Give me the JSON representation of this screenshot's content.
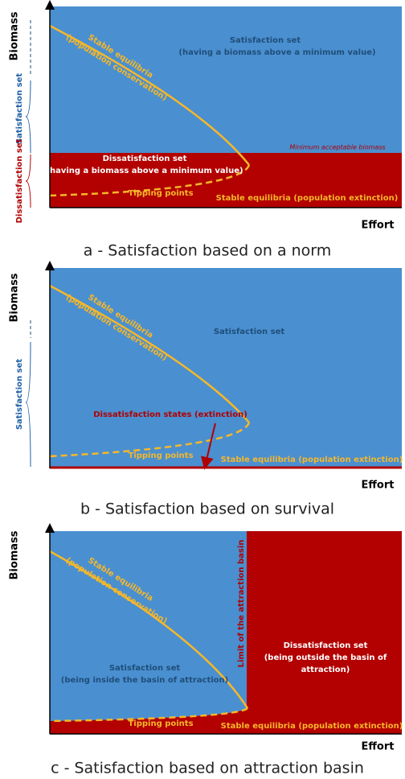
{
  "panels": [
    {
      "caption": "a - Satisfaction based on a norm",
      "y_axis": "Biomass",
      "x_axis": "Effort",
      "side_labels": [
        "Satisfaction set",
        "Dissatisfaction set"
      ],
      "labels": [
        "Stable equilibria",
        "(population conservation)",
        "Satisfaction set",
        "(having a biomass above a minimum value)",
        "Minimum acceptable biomass",
        "Dissatisfaction set",
        "(having a biomass above a minimum value)",
        "Tipping points",
        "Stable equilibria (population extinction)"
      ]
    },
    {
      "caption": "b - Satisfaction based on survival",
      "y_axis": "Biomass",
      "x_axis": "Effort",
      "side_labels": [
        "Satisfaction set"
      ],
      "labels": [
        "Stable equilibria",
        "(population conservation)",
        "Satisfaction set",
        "Dissatisfaction states (extinction)",
        "Tipping points",
        "Stable equilibria (population extinction)"
      ]
    },
    {
      "caption": "c - Satisfaction based on attraction basin",
      "y_axis": "Biomass",
      "x_axis": "Effort",
      "labels": [
        "Stable equilibria",
        "(population conservation)",
        "Limit of the attraction basin",
        "Satisfaction set",
        "(being inside the basin of attraction)",
        "Dissatisfaction set",
        "(being outside the basin of",
        "attraction)",
        "Tipping points",
        "Stable equilibria (population extinction)"
      ]
    }
  ]
}
